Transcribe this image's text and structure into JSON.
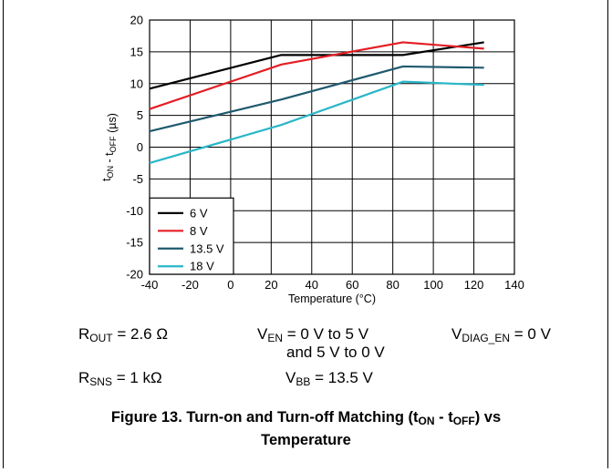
{
  "chart_data": {
    "type": "line",
    "xlabel": "Temperature (°C)",
    "ylabel_parts": [
      "t",
      "ON",
      " - t",
      "OFF",
      " (µs)"
    ],
    "xlim": [
      -40,
      140
    ],
    "ylim": [
      -20,
      20
    ],
    "x_ticks": [
      -40,
      -20,
      0,
      20,
      40,
      60,
      80,
      100,
      120,
      140
    ],
    "y_ticks": [
      -20,
      -15,
      -10,
      -5,
      0,
      5,
      10,
      15,
      20
    ],
    "grid": true,
    "legend_placement": "bottom-left",
    "series": [
      {
        "name": "6 V",
        "color": "#000000",
        "x": [
          -40,
          25,
          85,
          125
        ],
        "y": [
          9.2,
          14.5,
          14.5,
          16.5
        ]
      },
      {
        "name": "8 V",
        "color": "#e31e24",
        "x": [
          -40,
          25,
          85,
          125
        ],
        "y": [
          6.0,
          13.0,
          16.5,
          15.5
        ]
      },
      {
        "name": "13.5 V",
        "color": "#1f5a6e",
        "x": [
          -40,
          25,
          85,
          125
        ],
        "y": [
          2.5,
          7.5,
          12.7,
          12.5
        ]
      },
      {
        "name": "18 V",
        "color": "#29b6c8",
        "x": [
          -40,
          25,
          85,
          125
        ],
        "y": [
          -2.5,
          3.5,
          10.3,
          9.8
        ]
      }
    ]
  },
  "conditions": {
    "rout": {
      "main": "R",
      "sub": "OUT",
      "rest": " = 2.6 Ω"
    },
    "ven": {
      "main": "V",
      "sub": "EN",
      "rest": " = 0 V to 5 V"
    },
    "ven2": "and 5 V to 0 V",
    "vdiag": {
      "main": "V",
      "sub": "DIAG_EN",
      "rest": " = 0 V"
    },
    "rsns": {
      "main": "R",
      "sub": "SNS",
      "rest": " = 1 kΩ"
    },
    "vbb": {
      "main": "V",
      "sub": "BB",
      "rest": " = 13.5 V"
    }
  },
  "caption": {
    "line1_pre": "Figure 13. Turn-on and Turn-off Matching (t",
    "line1_sub1": "ON",
    "line1_mid": " - t",
    "line1_sub2": "OFF",
    "line1_post": ") vs",
    "line2": "Temperature"
  }
}
